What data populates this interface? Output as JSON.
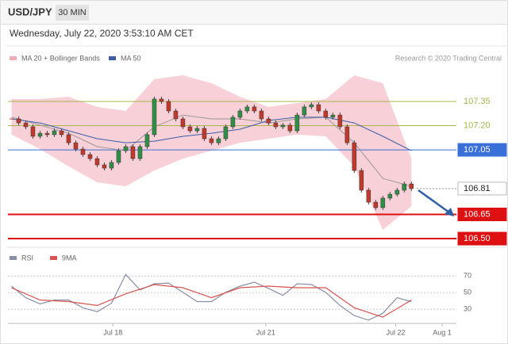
{
  "header": {
    "symbol": "USD/JPY",
    "interval": "30 MIN",
    "timestamp": "Wednesday, July 22, 2020 3:53:10 AM CET"
  },
  "chart_data": [
    {
      "type": "candlestick",
      "credit": "Research © 2020 Trading Central",
      "up_color": "#2f8f46",
      "down_color": "#c0392b",
      "close": [
        107.242,
        107.217,
        107.193,
        107.134,
        107.153,
        107.144,
        107.168,
        107.144,
        107.094,
        107.055,
        107.021,
        106.996,
        106.957,
        106.937,
        106.972,
        107.045,
        107.07,
        106.996,
        107.07,
        107.144,
        107.365,
        107.35,
        107.291,
        107.242,
        107.193,
        107.168,
        107.183,
        107.119,
        107.094,
        107.119,
        107.193,
        107.252,
        107.291,
        107.316,
        107.291,
        107.242,
        107.217,
        107.193,
        107.203,
        107.168,
        107.266,
        107.316,
        107.33,
        107.291,
        107.252,
        107.266,
        107.193,
        107.094,
        106.922,
        106.8,
        106.726,
        106.692,
        106.751,
        106.775,
        106.8,
        106.839,
        106.81
      ],
      "series": [
        {
          "name": "MA 20 + Bollinger Bands",
          "color": "#f3a9b6",
          "line_color": "#999999",
          "x": [
            0,
            4,
            8,
            12,
            16,
            20,
            24,
            28,
            32,
            36,
            40,
            44,
            48,
            52,
            56
          ],
          "values": [
            107.252,
            107.203,
            107.153,
            107.07,
            107.045,
            107.193,
            107.266,
            107.242,
            107.242,
            107.217,
            107.242,
            107.252,
            107.094,
            106.873,
            106.824
          ],
          "upper": [
            107.365,
            107.365,
            107.379,
            107.316,
            107.291,
            107.488,
            107.512,
            107.463,
            107.379,
            107.316,
            107.34,
            107.365,
            107.512,
            107.463,
            106.996
          ],
          "lower": [
            107.144,
            107.055,
            106.947,
            106.849,
            106.824,
            106.922,
            106.996,
            107.045,
            107.094,
            107.119,
            107.144,
            107.134,
            106.947,
            106.554,
            106.701
          ]
        },
        {
          "name": "MA 50",
          "color": "#3a5da8",
          "x": [
            0,
            4,
            8,
            12,
            16,
            20,
            24,
            28,
            32,
            36,
            40,
            44,
            48,
            52,
            56
          ],
          "values": [
            107.242,
            107.217,
            107.168,
            107.119,
            107.094,
            107.104,
            107.134,
            107.153,
            107.178,
            107.232,
            107.252,
            107.252,
            107.217,
            107.134,
            107.045
          ]
        }
      ],
      "levels": [
        {
          "value": 107.35,
          "color": "#a8b64a",
          "style": "text"
        },
        {
          "value": 107.2,
          "label": "107.20",
          "color": "#a8b64a",
          "style": "text"
        },
        {
          "value": 107.05,
          "color": "#3a6fd8",
          "style": "box"
        },
        {
          "value": 106.81,
          "color": "#999999",
          "style": "outline"
        },
        {
          "value": 106.65,
          "color": "#dd1111",
          "style": "box"
        },
        {
          "value": 106.5,
          "label": "106.50",
          "color": "#dd1111",
          "style": "box"
        }
      ],
      "xlim": [
        -0.5,
        62.3
      ],
      "ylim": [
        106.456,
        107.684
      ]
    },
    {
      "type": "line",
      "series": [
        {
          "name": "RSI",
          "color": "#8a8fa8",
          "x": [
            0,
            2,
            4,
            6,
            8,
            10,
            12,
            14,
            16,
            18,
            20,
            22,
            24,
            26,
            28,
            30,
            32,
            34,
            36,
            38,
            40,
            42,
            44,
            46,
            48,
            50,
            52,
            54,
            56
          ],
          "values": [
            57.9,
            44.0,
            36.5,
            41.2,
            41.2,
            31.9,
            27.2,
            37.4,
            71.9,
            53.3,
            60.7,
            61.6,
            50.5,
            39.3,
            39.3,
            50.5,
            57.9,
            62.6,
            55.1,
            46.7,
            60.7,
            59.8,
            50.5,
            34.7,
            22.6,
            17.0,
            25.3,
            44.0,
            39.3
          ]
        },
        {
          "name": "9MA",
          "color": "#d9534f",
          "x": [
            0,
            4,
            8,
            12,
            16,
            20,
            24,
            28,
            32,
            36,
            40,
            44,
            48,
            52,
            56
          ],
          "values": [
            56.0,
            41.2,
            39.3,
            34.7,
            48.6,
            59.8,
            56.0,
            44.0,
            56.0,
            57.9,
            56.0,
            56.0,
            31.9,
            20.7,
            41.2
          ]
        }
      ],
      "xlim": [
        -0.5,
        62.3
      ],
      "ylim": [
        16,
        95
      ],
      "yticks": [
        30,
        50,
        70
      ],
      "xticks": [
        {
          "value": 14.2,
          "label": "Jul 18"
        },
        {
          "value": 35.6,
          "label": "Jul 21"
        },
        {
          "value": 53.8,
          "label": "Jul 22"
        },
        {
          "value": 60.3,
          "label": "Aug 1"
        }
      ]
    }
  ]
}
